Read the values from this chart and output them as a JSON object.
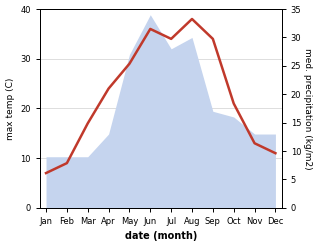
{
  "months": [
    "Jan",
    "Feb",
    "Mar",
    "Apr",
    "May",
    "Jun",
    "Jul",
    "Aug",
    "Sep",
    "Oct",
    "Nov",
    "Dec"
  ],
  "temperature": [
    7,
    9,
    17,
    24,
    29,
    36,
    34,
    38,
    34,
    21,
    13,
    11
  ],
  "precipitation": [
    9,
    9,
    9,
    13,
    27,
    34,
    28,
    30,
    17,
    16,
    13,
    13
  ],
  "temp_color": "#c0392b",
  "precip_fill_color": "#c5d4ee",
  "xlabel": "date (month)",
  "ylabel_left": "max temp (C)",
  "ylabel_right": "med. precipitation (kg/m2)",
  "ylim_left": [
    0,
    40
  ],
  "ylim_right": [
    0,
    35
  ],
  "yticks_left": [
    0,
    10,
    20,
    30,
    40
  ],
  "yticks_right": [
    0,
    5,
    10,
    15,
    20,
    25,
    30,
    35
  ],
  "precip_scale_factor": 0.875,
  "background_color": "#ffffff",
  "grid_color": "#d0d0d0"
}
